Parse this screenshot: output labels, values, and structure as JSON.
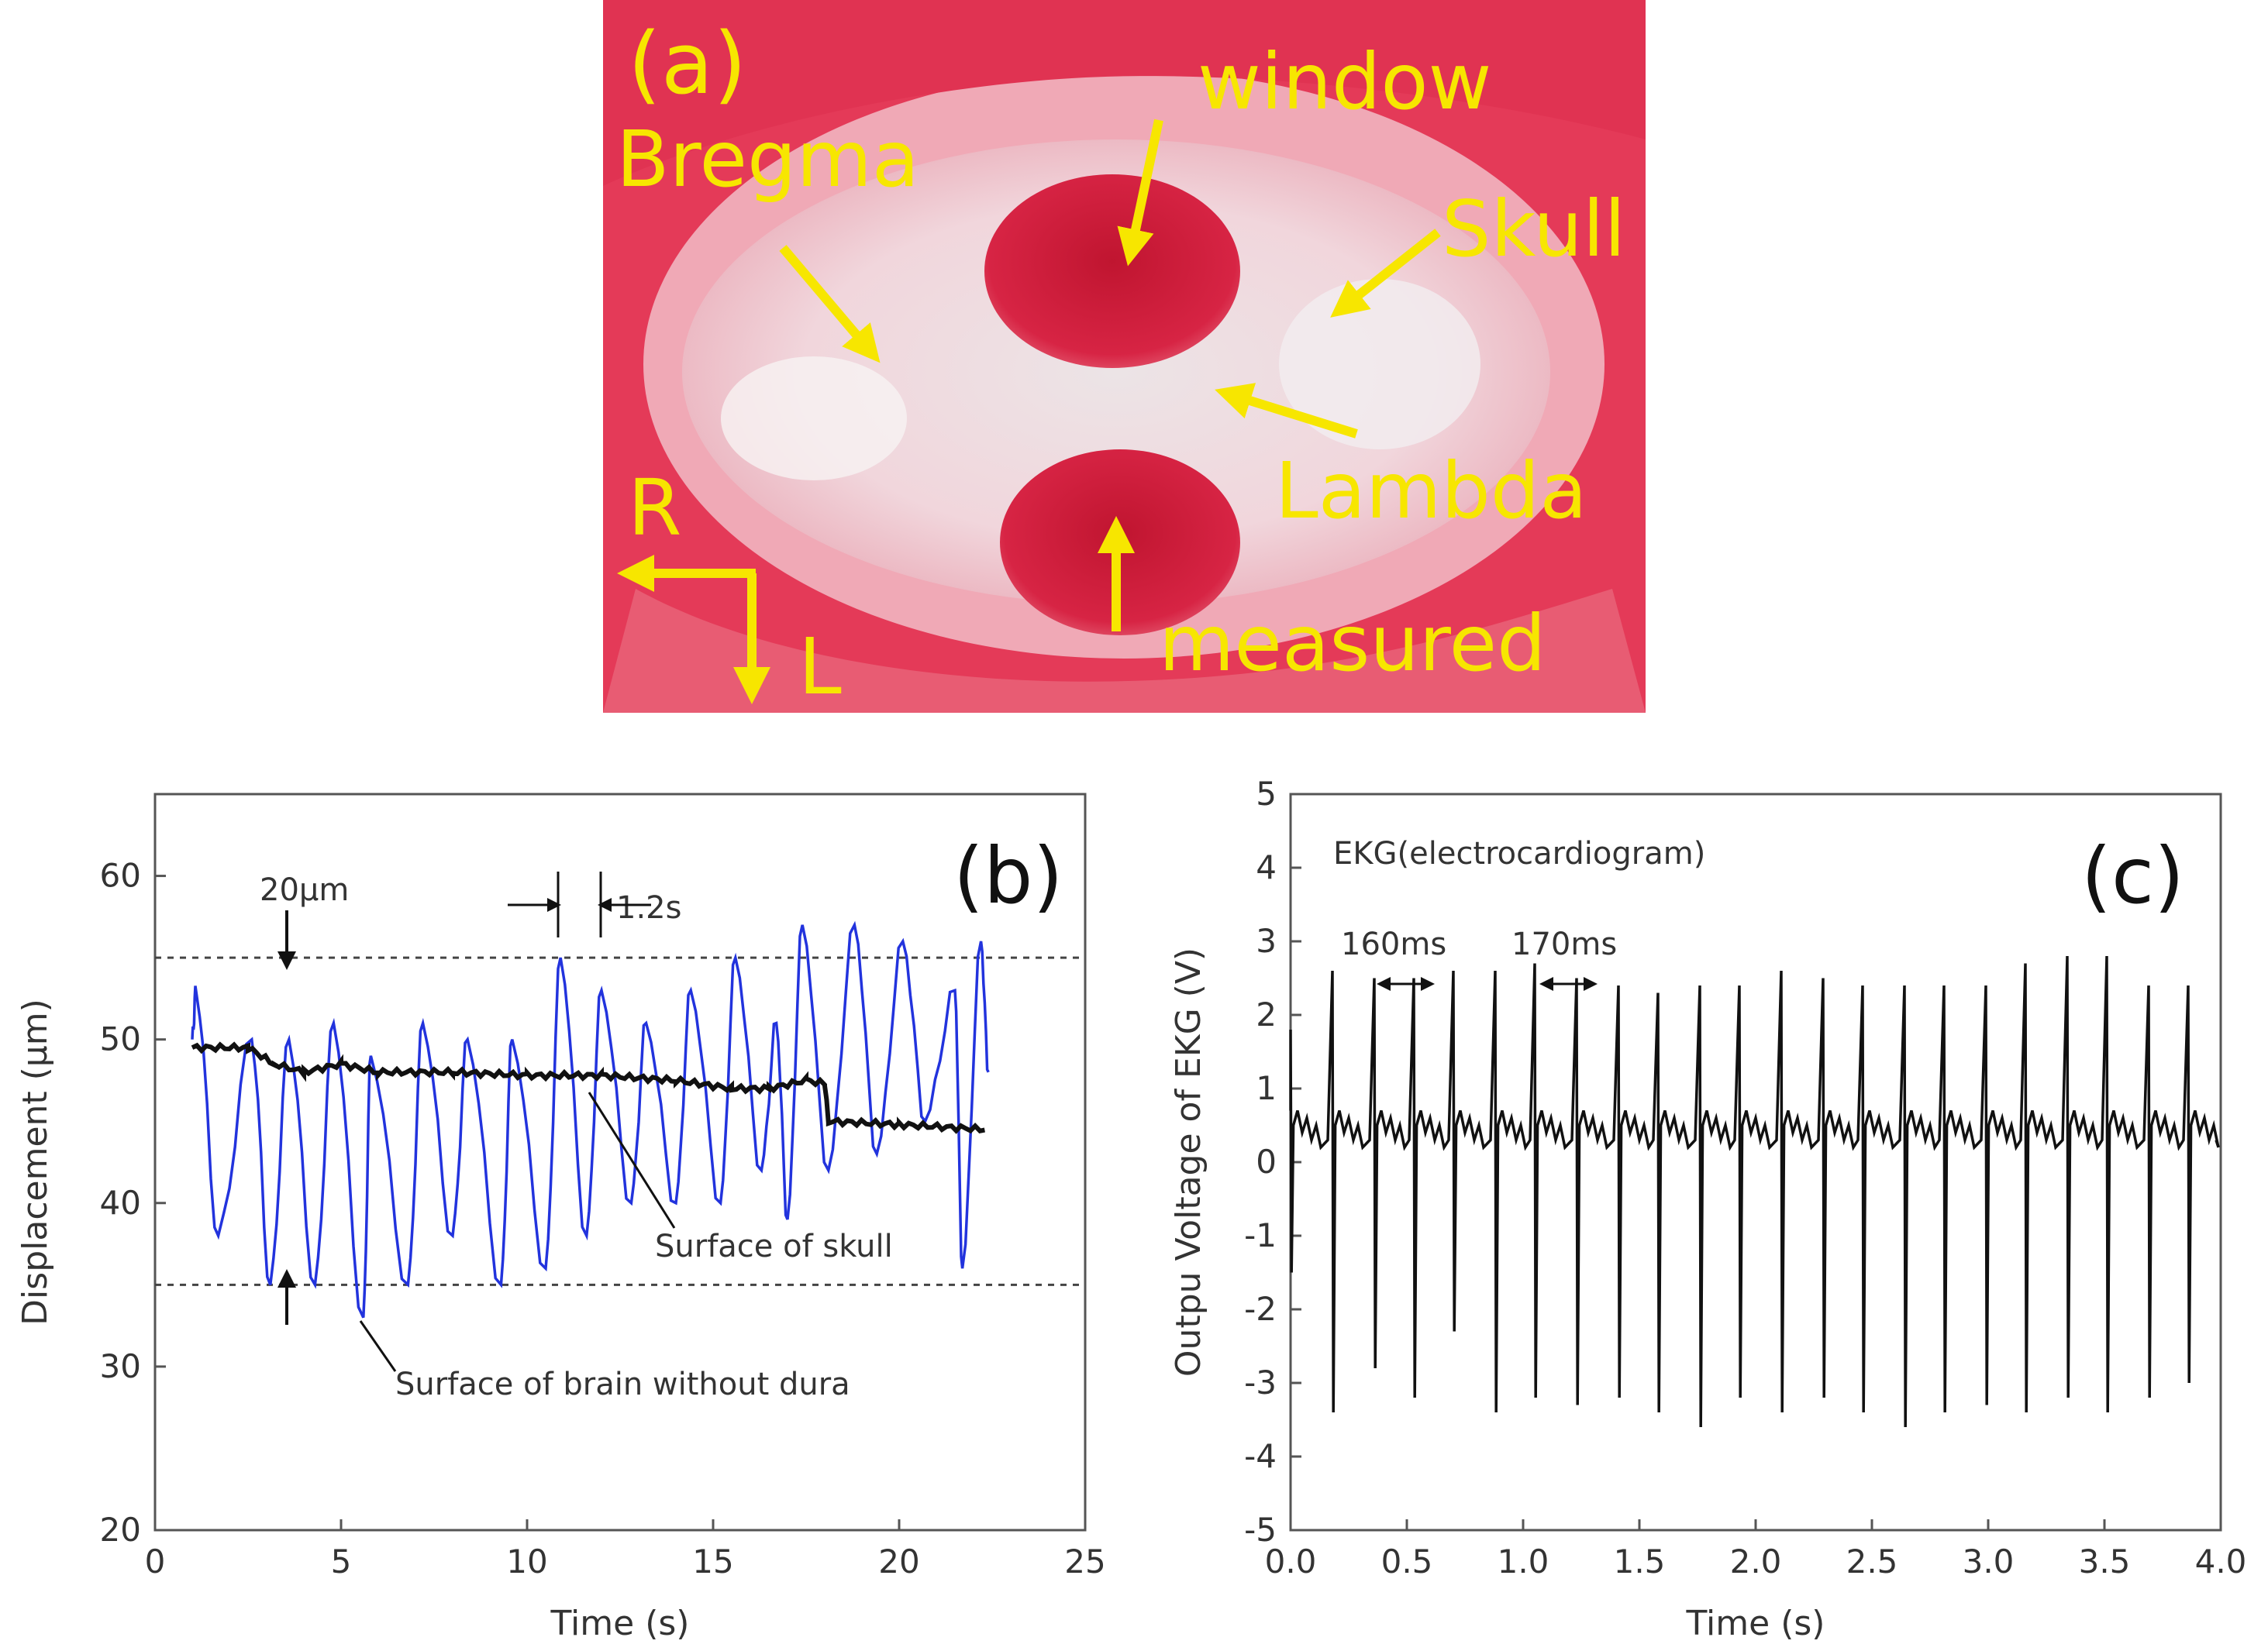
{
  "colors": {
    "label_yellow": "#f7e600",
    "tissue_red": "#d9203f",
    "tissue_pink": "#f2b8c2",
    "skull_white": "#f4e6e8",
    "brain_blue": "#2233dd",
    "trace_black": "#111111",
    "ekg_gray": "#555555"
  },
  "panel_a": {
    "panel_label": "(a)",
    "labels": {
      "window": "window",
      "bregma": "Bregma",
      "skull": "Skull",
      "lambda": "Lambda",
      "measured": "measured",
      "r": "R",
      "l": "L"
    }
  },
  "chart_data": [
    {
      "type": "line",
      "panel_label": "(b)",
      "title": "",
      "xlabel": "Time (s)",
      "ylabel": "Displacement (μm)",
      "xlim": [
        0,
        25
      ],
      "ylim": [
        20,
        65
      ],
      "xticks": [
        "0",
        "5",
        "10",
        "15",
        "20",
        "25"
      ],
      "yticks": [
        "20",
        "30",
        "40",
        "50",
        "60"
      ],
      "reference_lines_y": [
        55,
        35
      ],
      "annotations": {
        "amplitude": "20μm",
        "period": "1.2s",
        "skull_label": "Surface of skull",
        "brain_label": "Surface of brain without dura"
      },
      "series": [
        {
          "name": "Surface of brain without dura",
          "color": "#2233dd",
          "peaks": [
            [
              1.1,
              53
            ],
            [
              2.6,
              50
            ],
            [
              3.6,
              50
            ],
            [
              4.8,
              51
            ],
            [
              5.8,
              49
            ],
            [
              7.2,
              51
            ],
            [
              8.4,
              50
            ],
            [
              9.6,
              50
            ],
            [
              10.9,
              55
            ],
            [
              12.0,
              53
            ],
            [
              13.2,
              51
            ],
            [
              14.4,
              53
            ],
            [
              15.6,
              55
            ],
            [
              16.7,
              51
            ],
            [
              17.4,
              57
            ],
            [
              18.8,
              57
            ],
            [
              20.1,
              56
            ],
            [
              21.5,
              53
            ],
            [
              22.2,
              56
            ]
          ],
          "troughs": [
            [
              1.7,
              38
            ],
            [
              3.1,
              35
            ],
            [
              4.3,
              35
            ],
            [
              5.6,
              33
            ],
            [
              6.8,
              35
            ],
            [
              8.0,
              38
            ],
            [
              9.3,
              35
            ],
            [
              10.5,
              36
            ],
            [
              11.6,
              38
            ],
            [
              12.8,
              40
            ],
            [
              14.0,
              40
            ],
            [
              15.2,
              40
            ],
            [
              16.3,
              42
            ],
            [
              17.0,
              39
            ],
            [
              18.1,
              42
            ],
            [
              19.4,
              43
            ],
            [
              20.7,
              45
            ],
            [
              21.7,
              36
            ]
          ],
          "x_range": [
            1.0,
            22.4
          ]
        },
        {
          "name": "Surface of skull",
          "color": "#111111",
          "x": [
            1.0,
            2.5,
            3.2,
            4.0,
            5.0,
            6.0,
            8.0,
            10.0,
            12.0,
            14.0,
            15.5,
            16.5,
            17.5,
            18.0,
            18.1,
            20.0,
            22.3
          ],
          "y": [
            49.5,
            49.5,
            48.5,
            48.0,
            48.5,
            48.0,
            48.0,
            47.8,
            47.8,
            47.5,
            47.0,
            47.0,
            47.5,
            47.3,
            45.0,
            44.8,
            44.5
          ]
        }
      ]
    },
    {
      "type": "line",
      "panel_label": "(c)",
      "title": "EKG(electrocardiogram)",
      "xlabel": "Time (s)",
      "ylabel": "Outpu Voltage of EKG (V)",
      "xlim": [
        0.0,
        4.0
      ],
      "ylim": [
        -5,
        5
      ],
      "xticks": [
        "0.0",
        "0.5",
        "1.0",
        "1.5",
        "2.0",
        "2.5",
        "3.0",
        "3.5",
        "4.0"
      ],
      "yticks": [
        "-5",
        "-4",
        "-3",
        "-2",
        "-1",
        "0",
        "1",
        "2",
        "3",
        "4",
        "5"
      ],
      "annotations": {
        "interval_1": "160ms",
        "interval_2": "170ms"
      },
      "series": [
        {
          "name": "EKG",
          "color": "#111111",
          "baseline": 0.3,
          "beats": [
            [
              0.0,
              1.8,
              -1.5
            ],
            [
              0.18,
              2.6,
              -3.4
            ],
            [
              0.36,
              2.5,
              -2.8
            ],
            [
              0.53,
              2.5,
              -3.2
            ],
            [
              0.7,
              2.6,
              -2.3
            ],
            [
              0.88,
              2.6,
              -3.4
            ],
            [
              1.05,
              2.7,
              -3.2
            ],
            [
              1.23,
              2.5,
              -3.3
            ],
            [
              1.41,
              2.4,
              -3.2
            ],
            [
              1.58,
              2.3,
              -3.4
            ],
            [
              1.76,
              2.4,
              -3.6
            ],
            [
              1.93,
              2.4,
              -3.2
            ],
            [
              2.11,
              2.6,
              -3.4
            ],
            [
              2.29,
              2.5,
              -3.2
            ],
            [
              2.46,
              2.4,
              -3.4
            ],
            [
              2.64,
              2.4,
              -3.6
            ],
            [
              2.81,
              2.4,
              -3.4
            ],
            [
              2.99,
              2.4,
              -3.3
            ],
            [
              3.16,
              2.7,
              -3.4
            ],
            [
              3.34,
              2.8,
              -3.2
            ],
            [
              3.51,
              2.8,
              -3.4
            ],
            [
              3.69,
              2.4,
              -3.2
            ],
            [
              3.86,
              2.4,
              -3.0
            ]
          ]
        }
      ]
    }
  ]
}
